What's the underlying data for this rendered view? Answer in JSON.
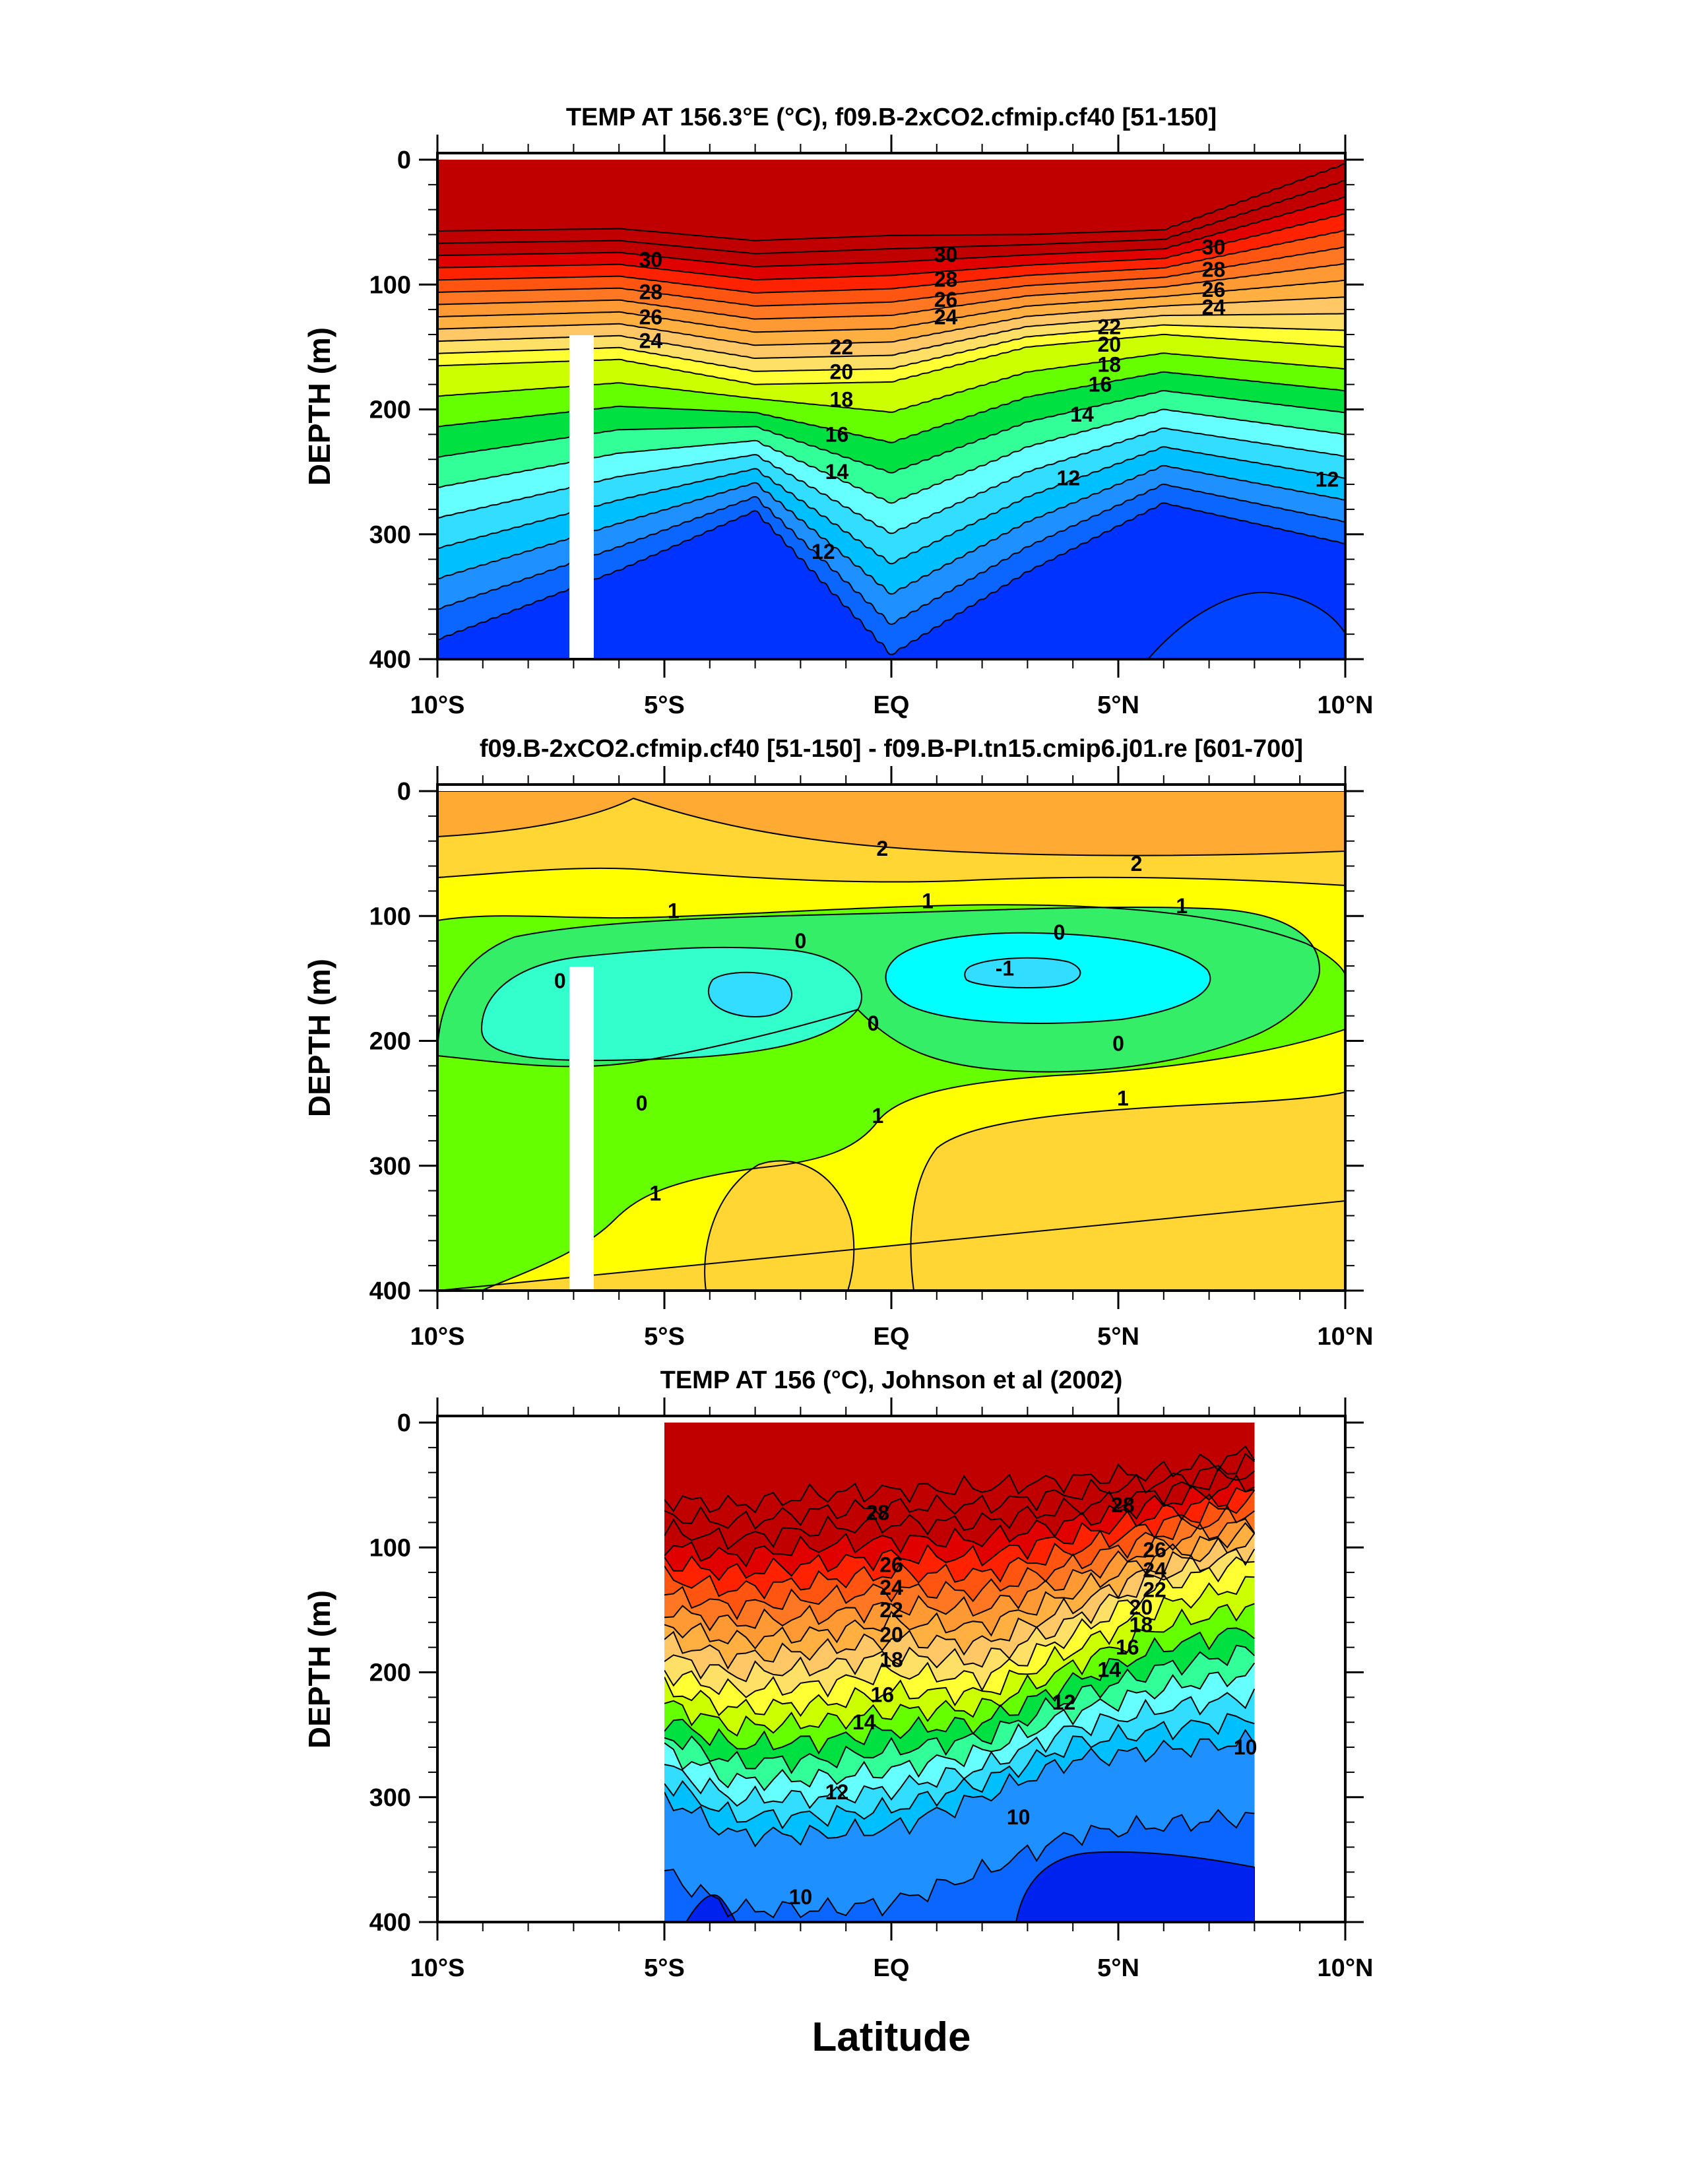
{
  "colors": {
    "band_temp": [
      "#0033ff",
      "#0b66ff",
      "#1e90ff",
      "#00bfff",
      "#33ddff",
      "#66ffff",
      "#33ff99",
      "#00e040",
      "#66ff00",
      "#ccff00",
      "#ffff33",
      "#ffe066",
      "#ffc766",
      "#ffb040",
      "#ff9933",
      "#ff7722",
      "#ff5511",
      "#ff2200",
      "#e00000",
      "#c00000"
    ],
    "band_diff": [
      "#33ddff",
      "#00ffff",
      "#33ffcc",
      "#33ee66",
      "#66ff00",
      "#ffff00",
      "#ffd633",
      "#ffaa33"
    ],
    "contour": "#000000",
    "gap": "#ffffff"
  },
  "chart_data": [
    {
      "type": "contour",
      "title": "TEMP AT 156.3°E (°C), f09.B-2xCO2.cfmip.cf40 [51-150]",
      "ylabel": "DEPTH (m)",
      "x_ticks": [
        "10°S",
        "5°S",
        "EQ",
        "5°N",
        "10°N"
      ],
      "x_values": [
        -10,
        -5,
        0,
        5,
        10
      ],
      "y_ticks": [
        "0",
        "100",
        "200",
        "300",
        "400"
      ],
      "y_values": [
        0,
        100,
        200,
        300,
        400
      ],
      "xlim": [
        -10,
        10
      ],
      "ylim": [
        400,
        0
      ],
      "contour_labels": [
        {
          "text": "30",
          "lat": -5.3,
          "depth": 80
        },
        {
          "text": "28",
          "lat": -5.3,
          "depth": 106
        },
        {
          "text": "26",
          "lat": -5.3,
          "depth": 126
        },
        {
          "text": "24",
          "lat": -5.3,
          "depth": 145
        },
        {
          "text": "22",
          "lat": -1.1,
          "depth": 150
        },
        {
          "text": "20",
          "lat": -1.1,
          "depth": 170
        },
        {
          "text": "18",
          "lat": -1.1,
          "depth": 192
        },
        {
          "text": "16",
          "lat": -1.2,
          "depth": 220
        },
        {
          "text": "14",
          "lat": -1.2,
          "depth": 250
        },
        {
          "text": "12",
          "lat": -1.5,
          "depth": 314
        },
        {
          "text": "30",
          "lat": 1.2,
          "depth": 76
        },
        {
          "text": "28",
          "lat": 1.2,
          "depth": 96
        },
        {
          "text": "26",
          "lat": 1.2,
          "depth": 112
        },
        {
          "text": "24",
          "lat": 1.2,
          "depth": 126
        },
        {
          "text": "22",
          "lat": 4.8,
          "depth": 134
        },
        {
          "text": "20",
          "lat": 4.8,
          "depth": 148
        },
        {
          "text": "18",
          "lat": 4.8,
          "depth": 164
        },
        {
          "text": "16",
          "lat": 4.6,
          "depth": 180
        },
        {
          "text": "14",
          "lat": 4.2,
          "depth": 204
        },
        {
          "text": "12",
          "lat": 3.9,
          "depth": 255
        },
        {
          "text": "30",
          "lat": 7.1,
          "depth": 70
        },
        {
          "text": "28",
          "lat": 7.1,
          "depth": 88
        },
        {
          "text": "26",
          "lat": 7.1,
          "depth": 104
        },
        {
          "text": "24",
          "lat": 7.1,
          "depth": 118
        },
        {
          "text": "12",
          "lat": 9.6,
          "depth": 256
        }
      ]
    },
    {
      "type": "contour",
      "title": "f09.B-2xCO2.cfmip.cf40 [51-150] - f09.B-PI.tn15.cmip6.j01.re [601-700]",
      "ylabel": "DEPTH (m)",
      "x_ticks": [
        "10°S",
        "5°S",
        "EQ",
        "5°N",
        "10°N"
      ],
      "x_values": [
        -10,
        -5,
        0,
        5,
        10
      ],
      "y_ticks": [
        "0",
        "100",
        "200",
        "300",
        "400"
      ],
      "y_values": [
        0,
        100,
        200,
        300,
        400
      ],
      "xlim": [
        -10,
        10
      ],
      "ylim": [
        400,
        0
      ],
      "contour_labels": [
        {
          "text": "2",
          "lat": -0.2,
          "depth": 46
        },
        {
          "text": "2",
          "lat": 5.4,
          "depth": 58
        },
        {
          "text": "1",
          "lat": -4.8,
          "depth": 96
        },
        {
          "text": "1",
          "lat": 0.8,
          "depth": 88
        },
        {
          "text": "1",
          "lat": 6.4,
          "depth": 92
        },
        {
          "text": "0",
          "lat": -2.0,
          "depth": 120
        },
        {
          "text": "0",
          "lat": 3.7,
          "depth": 113
        },
        {
          "text": "-1",
          "lat": 2.5,
          "depth": 142
        },
        {
          "text": "0",
          "lat": -7.3,
          "depth": 152
        },
        {
          "text": "0",
          "lat": -0.4,
          "depth": 186
        },
        {
          "text": "0",
          "lat": 5.0,
          "depth": 202
        },
        {
          "text": "0",
          "lat": -5.5,
          "depth": 250
        },
        {
          "text": "1",
          "lat": 5.1,
          "depth": 246
        },
        {
          "text": "1",
          "lat": -0.3,
          "depth": 260
        },
        {
          "text": "1",
          "lat": -5.2,
          "depth": 322
        }
      ]
    },
    {
      "type": "contour",
      "title": "TEMP AT 156 (°C), Johnson et al (2002)",
      "ylabel": "DEPTH (m)",
      "xlabel": "Latitude",
      "x_ticks": [
        "10°S",
        "5°S",
        "EQ",
        "5°N",
        "10°N"
      ],
      "x_values": [
        -10,
        -5,
        0,
        5,
        10
      ],
      "y_ticks": [
        "0",
        "100",
        "200",
        "300",
        "400"
      ],
      "y_values": [
        0,
        100,
        200,
        300,
        400
      ],
      "xlim": [
        -10,
        10
      ],
      "ylim": [
        400,
        0
      ],
      "data_extent_lat": [
        -5,
        8
      ],
      "contour_labels": [
        {
          "text": "28",
          "lat": -0.3,
          "depth": 72
        },
        {
          "text": "28",
          "lat": 5.1,
          "depth": 66
        },
        {
          "text": "26",
          "lat": 0.0,
          "depth": 114
        },
        {
          "text": "24",
          "lat": 0.0,
          "depth": 132
        },
        {
          "text": "22",
          "lat": 0.0,
          "depth": 150
        },
        {
          "text": "20",
          "lat": 0.0,
          "depth": 170
        },
        {
          "text": "18",
          "lat": 0.0,
          "depth": 190
        },
        {
          "text": "16",
          "lat": -0.2,
          "depth": 218
        },
        {
          "text": "14",
          "lat": -0.6,
          "depth": 240
        },
        {
          "text": "26",
          "lat": 5.8,
          "depth": 102
        },
        {
          "text": "24",
          "lat": 5.8,
          "depth": 118
        },
        {
          "text": "22",
          "lat": 5.8,
          "depth": 134
        },
        {
          "text": "20",
          "lat": 5.5,
          "depth": 148
        },
        {
          "text": "18",
          "lat": 5.5,
          "depth": 162
        },
        {
          "text": "16",
          "lat": 5.2,
          "depth": 180
        },
        {
          "text": "14",
          "lat": 4.8,
          "depth": 198
        },
        {
          "text": "12",
          "lat": 3.8,
          "depth": 224
        },
        {
          "text": "12",
          "lat": -1.2,
          "depth": 296
        },
        {
          "text": "10",
          "lat": 2.8,
          "depth": 316
        },
        {
          "text": "10",
          "lat": 7.8,
          "depth": 260
        },
        {
          "text": "10",
          "lat": -2.0,
          "depth": 380
        }
      ]
    }
  ]
}
